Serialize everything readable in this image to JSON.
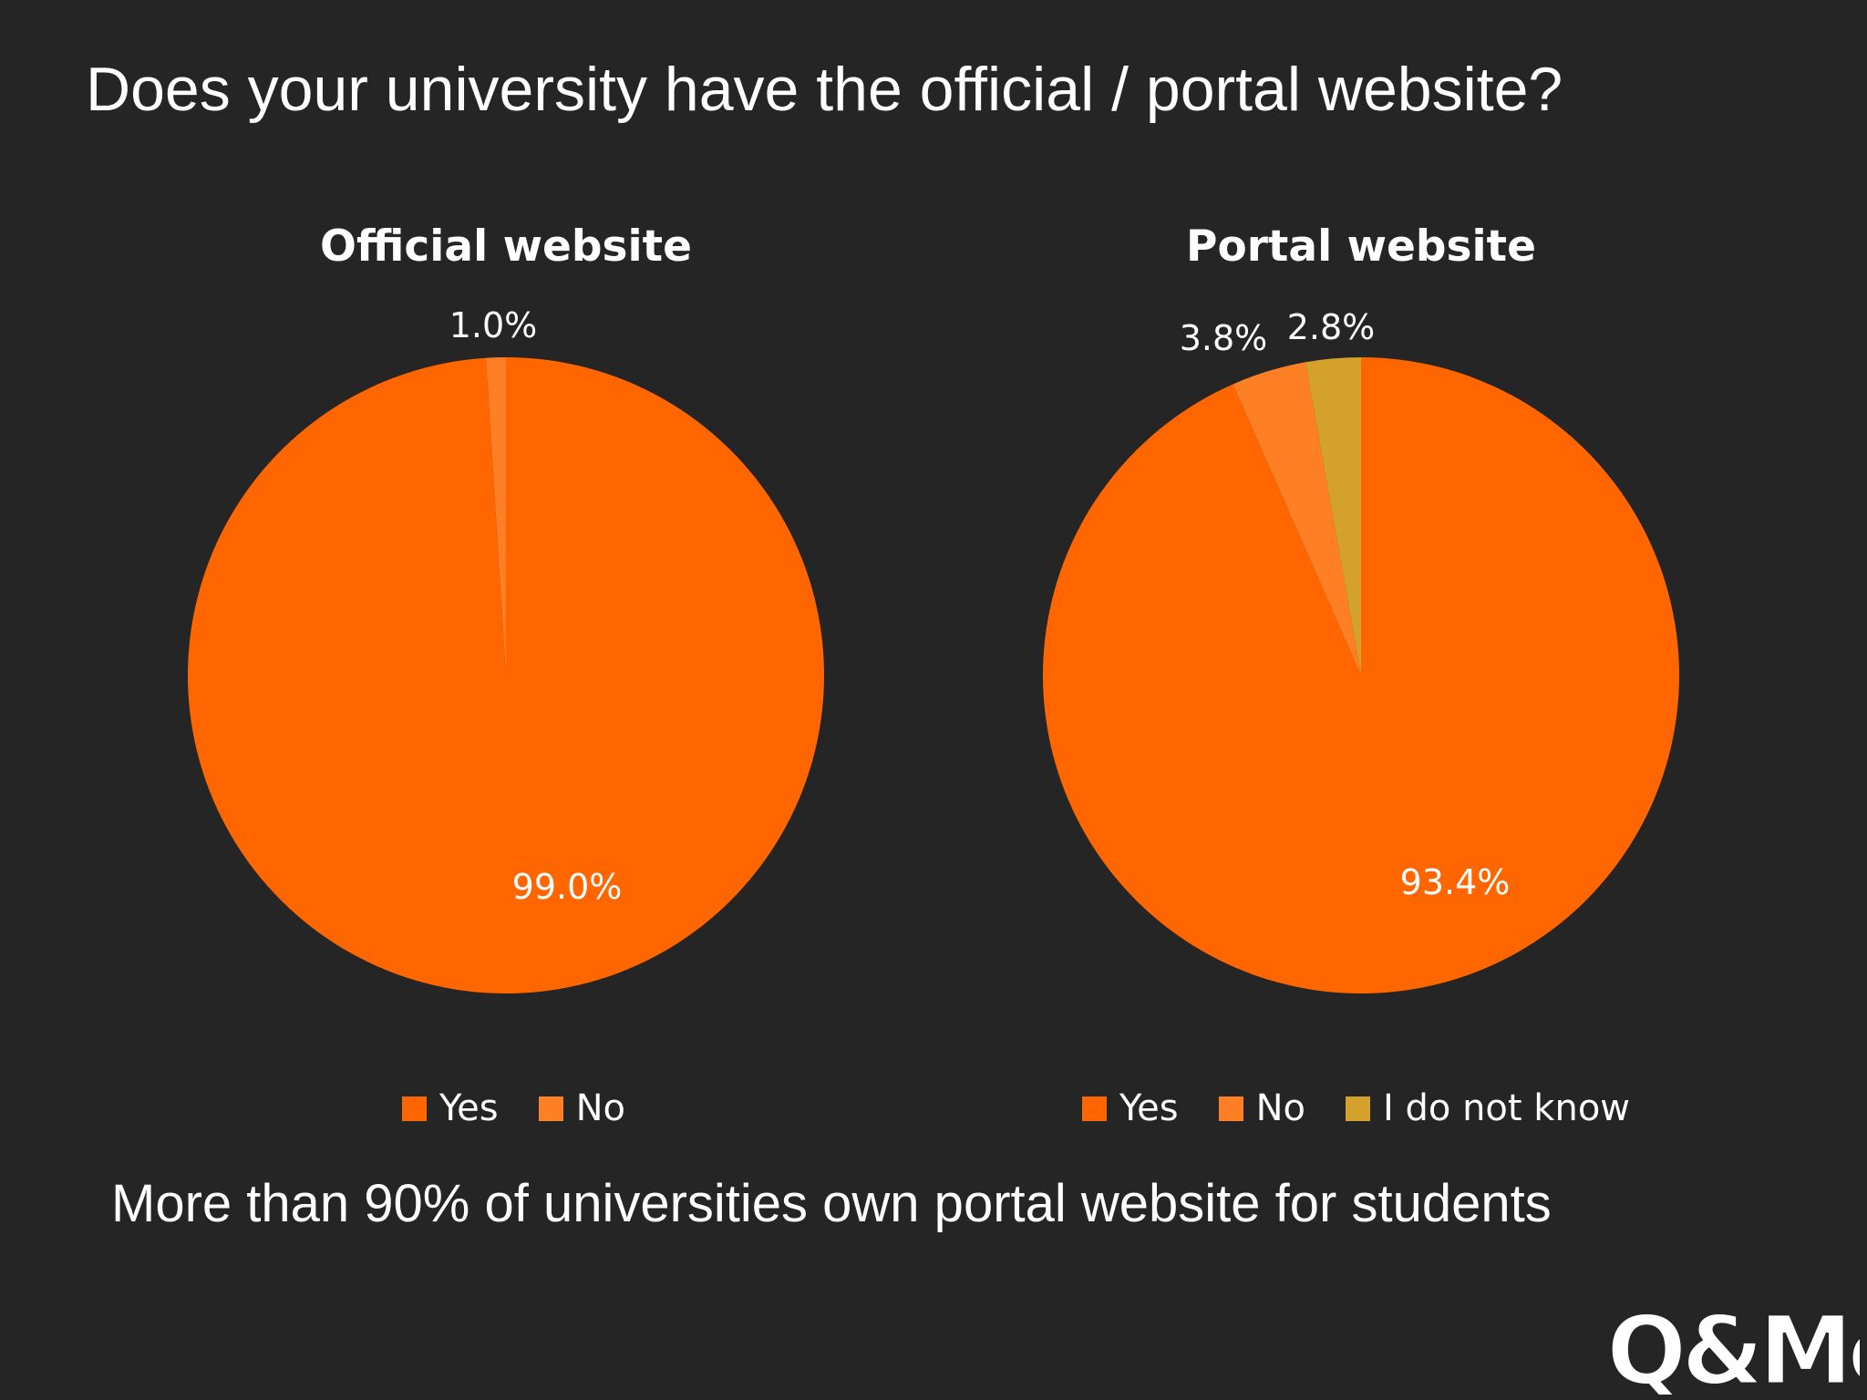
{
  "slide": {
    "title": "Does your university have the official / portal website?",
    "caption": "More than 90% of universities own portal website for students",
    "logo_text": "Q&Me"
  },
  "colors": {
    "background": "#252526",
    "yes": "#ff6600",
    "no": "#ff7f24",
    "dont_know": "#d4a12a",
    "text": "#ffffff"
  },
  "chart_data": [
    {
      "type": "pie",
      "title": "Official website",
      "categories": [
        "Yes",
        "No"
      ],
      "values": [
        99.0,
        1.0
      ],
      "labels": [
        "99.0%",
        "1.0%"
      ],
      "legend": "bottom"
    },
    {
      "type": "pie",
      "title": "Portal website",
      "categories": [
        "Yes",
        "No",
        "I do not know"
      ],
      "values": [
        93.4,
        3.8,
        2.8
      ],
      "labels": [
        "93.4%",
        "3.8%",
        "2.8%"
      ],
      "legend": "bottom"
    }
  ]
}
